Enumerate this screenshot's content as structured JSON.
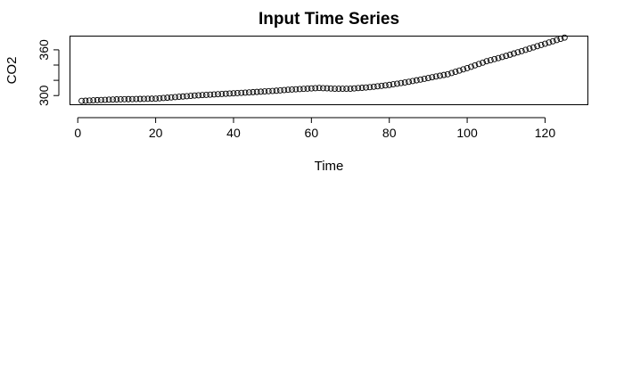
{
  "chart_data": {
    "type": "scatter",
    "title": "Input Time Series",
    "xlabel": "Time",
    "ylabel": "CO2",
    "xlim": [
      -2,
      131
    ],
    "ylim": [
      288,
      378
    ],
    "xticks": [
      0,
      20,
      40,
      60,
      80,
      100,
      120
    ],
    "yticks": [
      300,
      320,
      340,
      360
    ],
    "ytick_labels": [
      "300",
      "",
      "",
      "360"
    ],
    "grid": false,
    "marker": "open-circle",
    "anchors": [
      [
        1,
        293
      ],
      [
        5,
        294
      ],
      [
        10,
        295
      ],
      [
        20,
        296
      ],
      [
        30,
        300
      ],
      [
        40,
        303
      ],
      [
        50,
        306
      ],
      [
        55,
        308
      ],
      [
        62,
        310
      ],
      [
        66,
        309
      ],
      [
        70,
        309
      ],
      [
        75,
        311
      ],
      [
        80,
        314
      ],
      [
        85,
        318
      ],
      [
        90,
        323
      ],
      [
        95,
        328
      ],
      [
        100,
        336
      ],
      [
        105,
        345
      ],
      [
        110,
        352
      ],
      [
        115,
        360
      ],
      [
        120,
        368
      ],
      [
        125,
        376
      ]
    ],
    "n_points": 125
  }
}
